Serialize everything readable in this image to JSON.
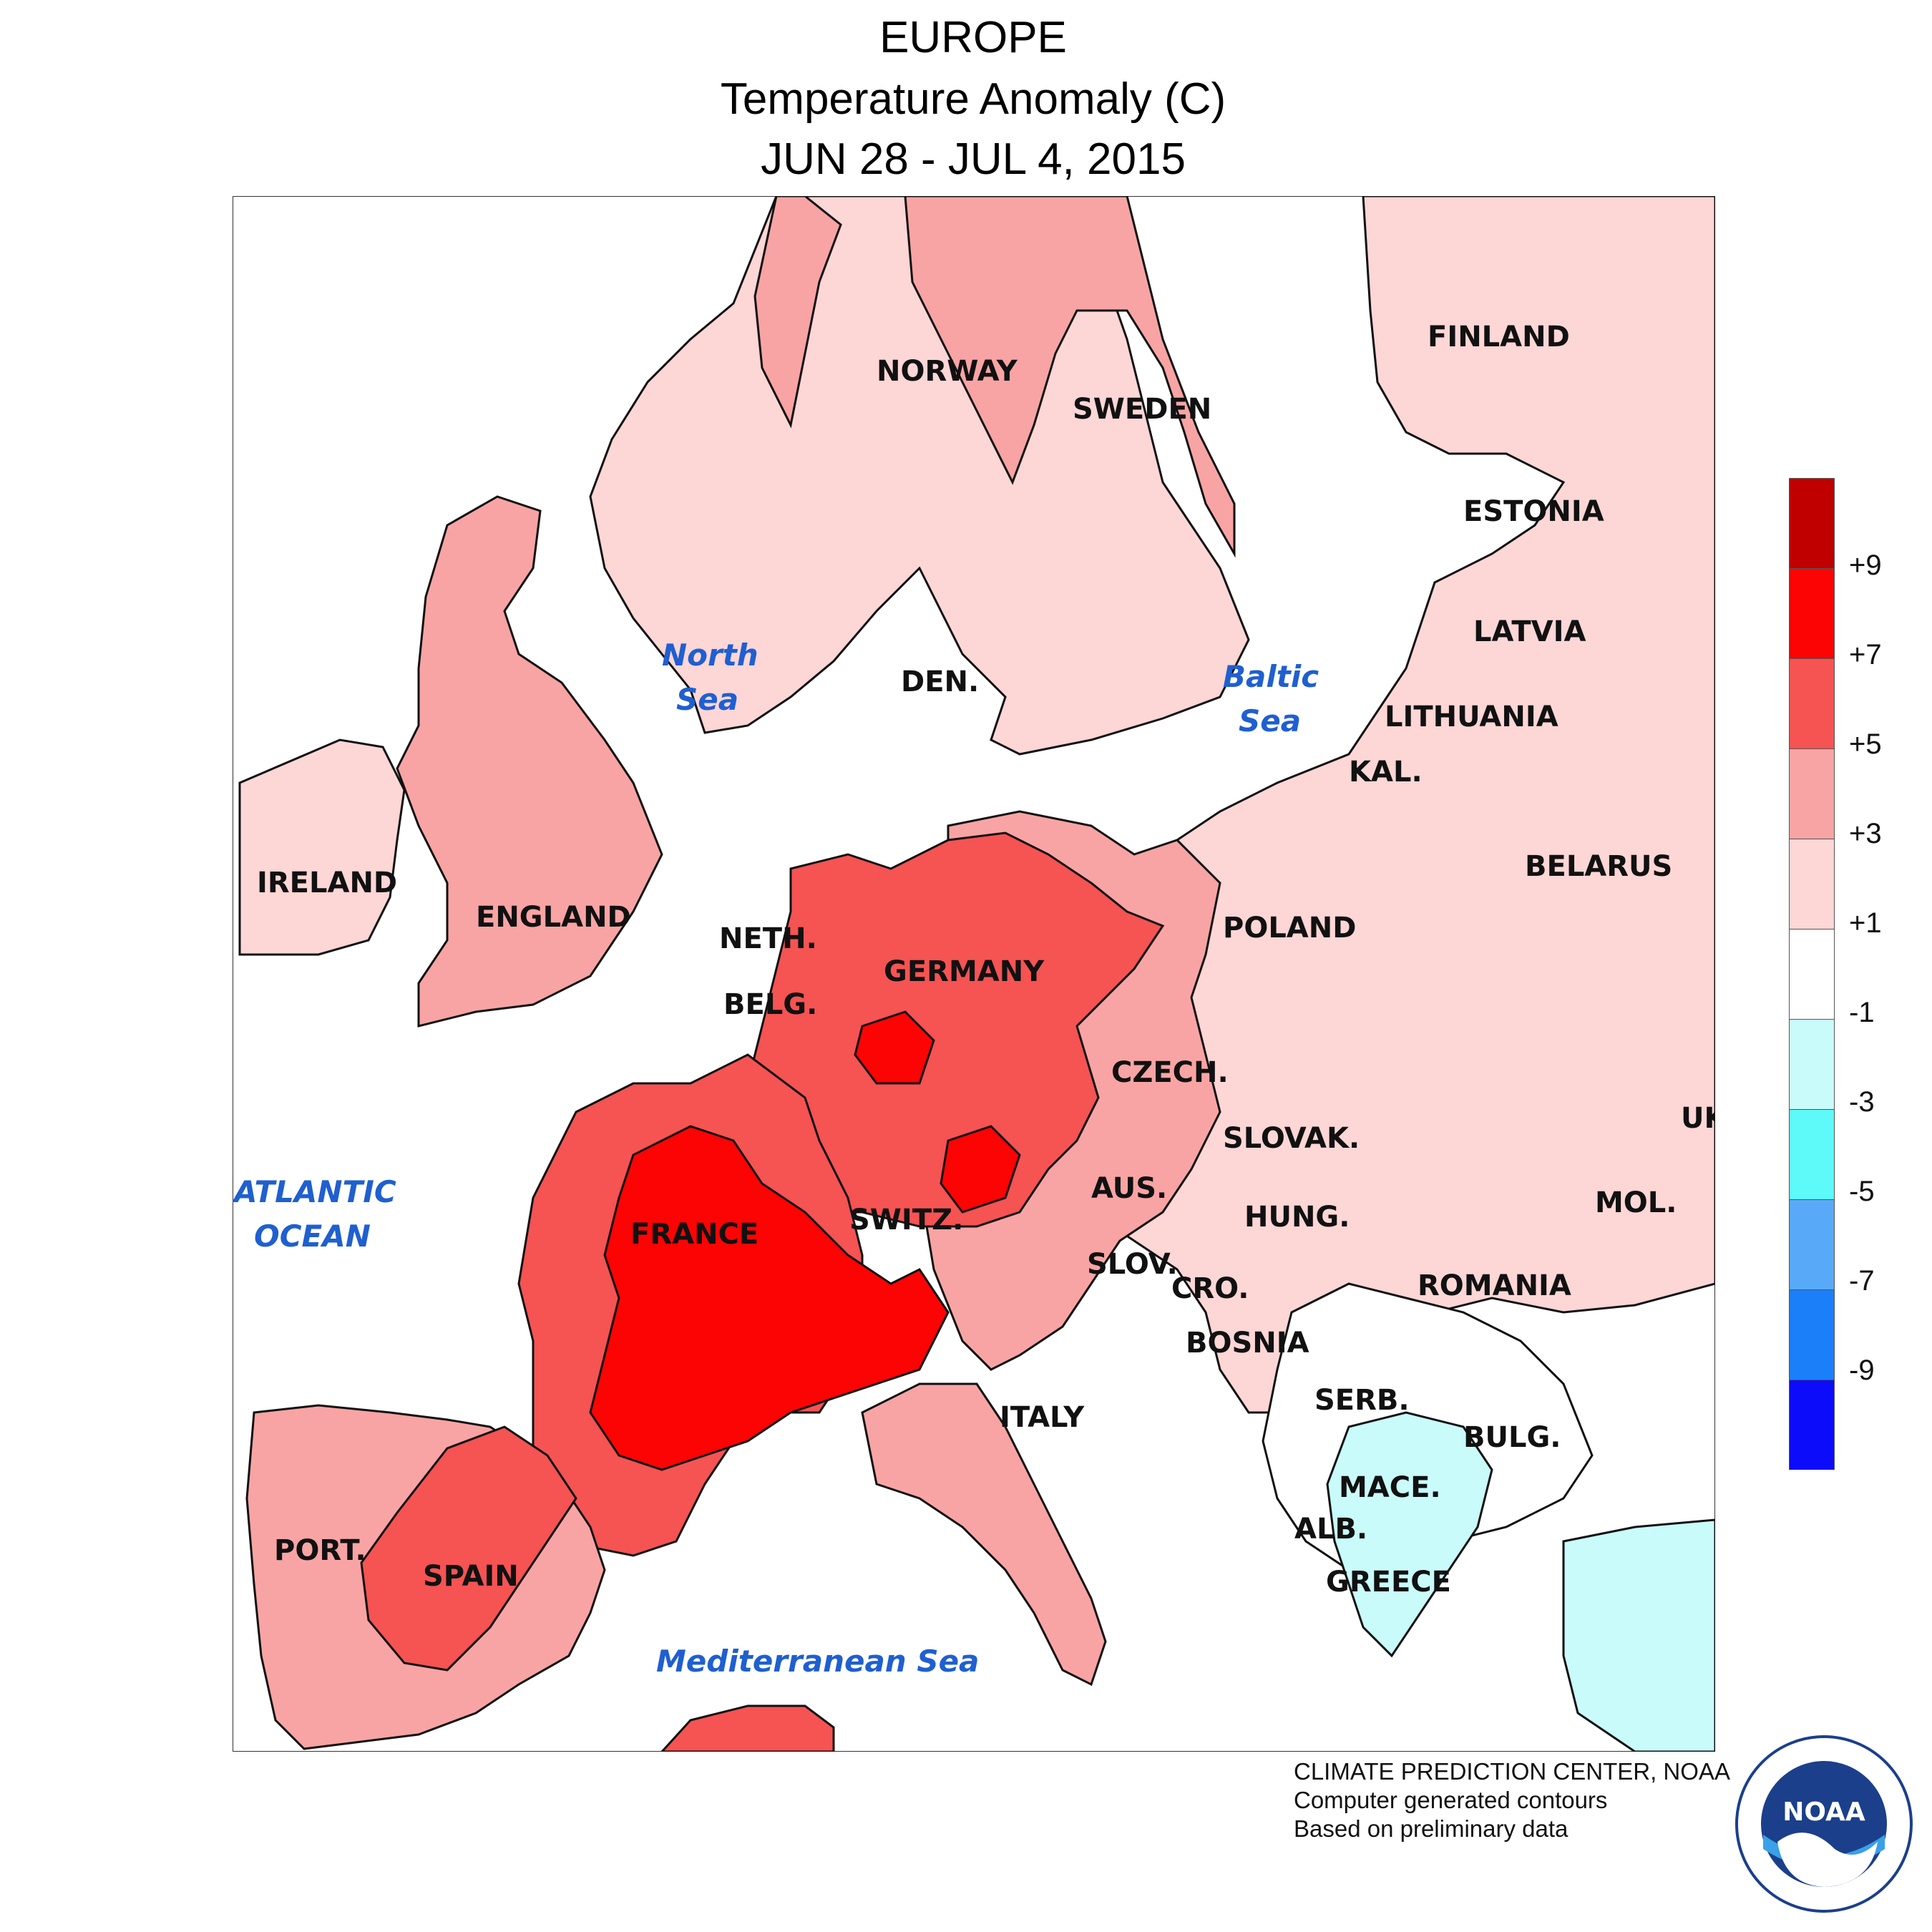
{
  "title": {
    "line1": "EUROPE",
    "line2": "Temperature Anomaly (C)",
    "line3": "JUN 28 - JUL 4, 2015"
  },
  "colors": {
    "plus1_3": "#fdd6d6",
    "plus3_5": "#f9a4a4",
    "plus5_7": "#f65353",
    "plus7_9": "#fc0404",
    "plus9": "#c00000",
    "minus1_m1": "#ffffff",
    "minus1_3": "#c9fbfb",
    "minus3_5": "#5ef9f9",
    "minus5_7": "#58aaf8",
    "minus7_9": "#1b7ffa",
    "minus9": "#0c0cfb",
    "contour": "#000000",
    "sea_text": "#1f5fd0"
  },
  "countries": {
    "finland": "FINLAND",
    "norway": "NORWAY",
    "sweden": "SWEDEN",
    "estonia": "ESTONIA",
    "latvia": "LATVIA",
    "lithuania": "LITHUANIA",
    "kal": "KAL.",
    "belarus": "BELARUS",
    "den": "DEN.",
    "ireland": "IRELAND",
    "england": "ENGLAND",
    "neth": "NETH.",
    "germany": "GERMANY",
    "poland": "POLAND",
    "belg": "BELG.",
    "czech": "CZECH.",
    "slovak": "SLOVAK.",
    "uk": "UK",
    "aus": "AUS.",
    "mol": "MOL.",
    "hung": "HUNG.",
    "switz": "SWITZ.",
    "france": "FRANCE",
    "slov": "SLOV.",
    "cro": "CRO.",
    "romania": "ROMANIA",
    "bosnia": "BOSNIA",
    "serb": "SERB.",
    "italy": "ITALY",
    "bulg": "BULG.",
    "mace": "MACE.",
    "alb": "ALB.",
    "port": "PORT.",
    "spain": "SPAIN",
    "greece": "GREECE"
  },
  "seas": {
    "north_1": "North",
    "north_2": "Sea",
    "baltic_1": "Baltic",
    "baltic_2": "Sea",
    "atlantic_1": "ATLANTIC",
    "atlantic_2": "OCEAN",
    "med": "Mediterranean Sea"
  },
  "legend": {
    "ticks": [
      "+9",
      "+7",
      "+5",
      "+3",
      "+1",
      "-1",
      "-3",
      "-5",
      "-7",
      "-9"
    ]
  },
  "credits": {
    "line1": "CLIMATE PREDICTION CENTER, NOAA",
    "line2": "Computer generated contours",
    "line3": "Based on preliminary data"
  },
  "logo": {
    "text": "NOAA"
  }
}
